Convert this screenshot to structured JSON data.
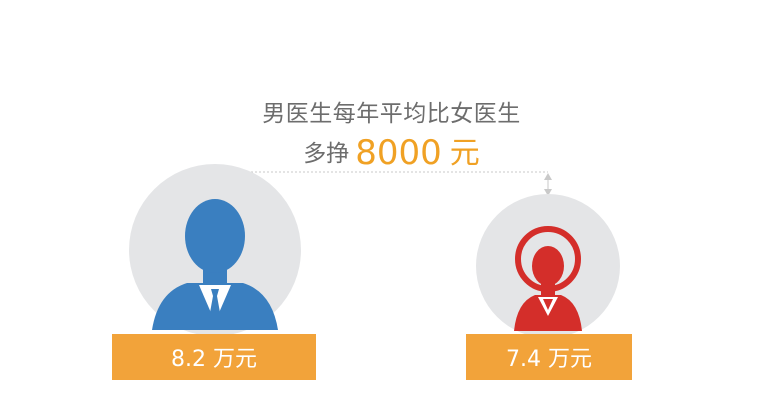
{
  "headline": "男医生每年平均比女医生",
  "subline_prefix": "多挣",
  "difference_amount": "8000",
  "difference_unit": "元",
  "male": {
    "salary_label": "8.2 万元"
  },
  "female": {
    "salary_label": "7.4 万元"
  },
  "colors": {
    "circle_bg": "#e4e5e7",
    "male_icon": "#3a7fc0",
    "female_icon": "#d42e2a",
    "accent_orange": "#f2a33a",
    "text_gray": "#6d6d6d"
  }
}
